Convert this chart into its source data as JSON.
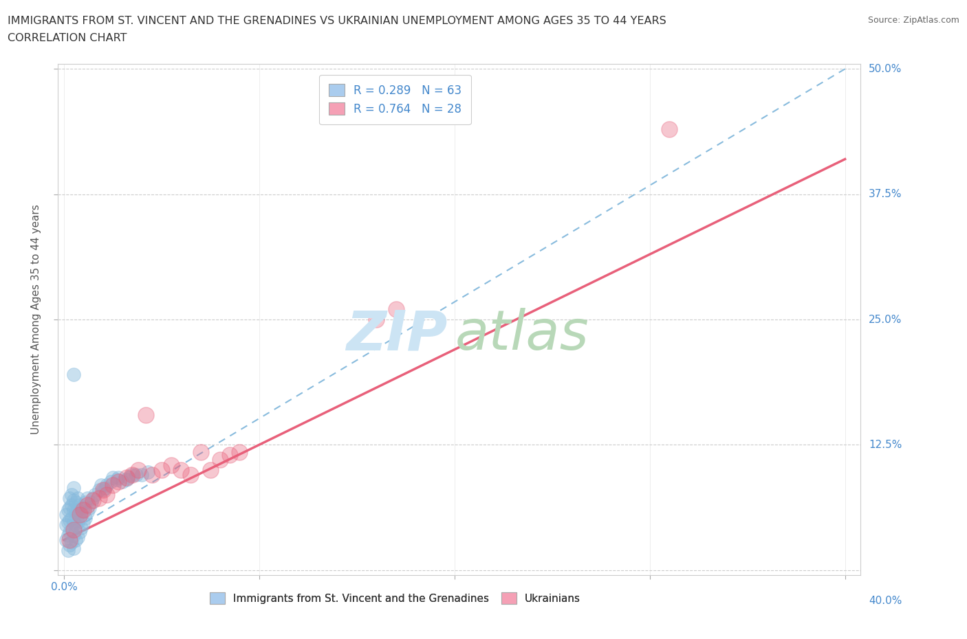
{
  "title_line1": "IMMIGRANTS FROM ST. VINCENT AND THE GRENADINES VS UKRAINIAN UNEMPLOYMENT AMONG AGES 35 TO 44 YEARS",
  "title_line2": "CORRELATION CHART",
  "source_text": "Source: ZipAtlas.com",
  "ylabel": "Unemployment Among Ages 35 to 44 years",
  "watermark_zip": "ZIP",
  "watermark_atlas": "atlas",
  "legend_items": [
    {
      "label": "R = 0.289   N = 63",
      "color": "#aaccee"
    },
    {
      "label": "R = 0.764   N = 28",
      "color": "#f5a0b5"
    }
  ],
  "bottom_legend": [
    {
      "label": "Immigrants from St. Vincent and the Grenadines",
      "color": "#aaccee"
    },
    {
      "label": "Ukrainians",
      "color": "#f5a0b5"
    }
  ],
  "xlim": [
    -0.003,
    0.408
  ],
  "ylim": [
    -0.005,
    0.505
  ],
  "xticks": [
    0.0,
    0.1,
    0.2,
    0.3,
    0.4
  ],
  "yticks": [
    0.0,
    0.125,
    0.25,
    0.375,
    0.5
  ],
  "blue_scatter_x": [
    0.001,
    0.001,
    0.001,
    0.002,
    0.002,
    0.002,
    0.002,
    0.003,
    0.003,
    0.003,
    0.003,
    0.003,
    0.004,
    0.004,
    0.004,
    0.004,
    0.004,
    0.005,
    0.005,
    0.005,
    0.005,
    0.005,
    0.005,
    0.006,
    0.006,
    0.006,
    0.006,
    0.007,
    0.007,
    0.007,
    0.007,
    0.008,
    0.008,
    0.008,
    0.009,
    0.009,
    0.01,
    0.01,
    0.011,
    0.011,
    0.012,
    0.012,
    0.013,
    0.014,
    0.015,
    0.016,
    0.018,
    0.019,
    0.02,
    0.021,
    0.022,
    0.024,
    0.025,
    0.027,
    0.028,
    0.03,
    0.032,
    0.033,
    0.035,
    0.037,
    0.04,
    0.043,
    0.005
  ],
  "blue_scatter_y": [
    0.03,
    0.045,
    0.055,
    0.02,
    0.035,
    0.048,
    0.06,
    0.025,
    0.038,
    0.05,
    0.062,
    0.072,
    0.028,
    0.04,
    0.052,
    0.065,
    0.075,
    0.022,
    0.035,
    0.048,
    0.06,
    0.07,
    0.082,
    0.03,
    0.045,
    0.058,
    0.068,
    0.033,
    0.048,
    0.06,
    0.072,
    0.038,
    0.052,
    0.065,
    0.042,
    0.058,
    0.048,
    0.062,
    0.052,
    0.068,
    0.058,
    0.072,
    0.062,
    0.068,
    0.072,
    0.075,
    0.08,
    0.085,
    0.08,
    0.082,
    0.085,
    0.088,
    0.092,
    0.09,
    0.092,
    0.088,
    0.09,
    0.092,
    0.095,
    0.095,
    0.095,
    0.098,
    0.195
  ],
  "pink_scatter_x": [
    0.003,
    0.005,
    0.008,
    0.01,
    0.012,
    0.015,
    0.018,
    0.02,
    0.022,
    0.025,
    0.028,
    0.032,
    0.035,
    0.038,
    0.042,
    0.045,
    0.05,
    0.055,
    0.06,
    0.065,
    0.07,
    0.075,
    0.08,
    0.085,
    0.09,
    0.16,
    0.17,
    0.31
  ],
  "pink_scatter_y": [
    0.03,
    0.04,
    0.055,
    0.06,
    0.065,
    0.07,
    0.072,
    0.08,
    0.075,
    0.085,
    0.088,
    0.092,
    0.095,
    0.1,
    0.155,
    0.095,
    0.1,
    0.105,
    0.1,
    0.095,
    0.118,
    0.1,
    0.11,
    0.115,
    0.118,
    0.25,
    0.26,
    0.44
  ],
  "blue_trendline_x": [
    0.0,
    0.4
  ],
  "blue_trendline_y": [
    0.035,
    0.5
  ],
  "pink_trendline_x": [
    0.0,
    0.4
  ],
  "pink_trendline_y": [
    0.03,
    0.41
  ],
  "blue_trendline_color": "#88bbdd",
  "pink_trendline_color": "#e8607a",
  "grid_color": "#cccccc",
  "background_color": "#ffffff",
  "title_color": "#333333",
  "axis_color": "#4488cc",
  "watermark_blue": "#cce4f4",
  "watermark_green": "#b8d8b8",
  "title_fontsize": 11.5,
  "subtitle_fontsize": 11.5
}
